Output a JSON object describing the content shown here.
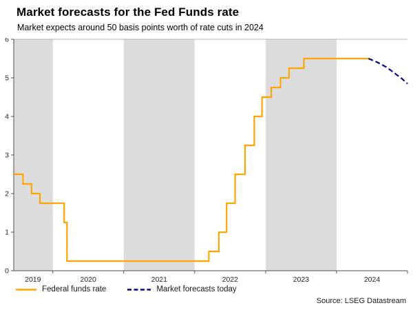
{
  "header": {
    "title": "Market forecasts for the Fed Funds rate",
    "subtitle": "Market expects around 50 basis points worth of rate cuts in 2024"
  },
  "chart_data": {
    "type": "line",
    "title": "Market forecasts for the Fed Funds rate",
    "xlabel": "",
    "ylabel": "",
    "x_domain": [
      2019.45,
      2025.0
    ],
    "y_domain": [
      0,
      6
    ],
    "y_ticks": [
      0,
      1,
      2,
      3,
      4,
      5,
      6
    ],
    "x_tick_boundaries": [
      2020,
      2021,
      2022,
      2023,
      2024,
      2025
    ],
    "x_labels": [
      {
        "text": "2019",
        "pos": 2019.72
      },
      {
        "text": "2020",
        "pos": 2020.5
      },
      {
        "text": "2021",
        "pos": 2021.5
      },
      {
        "text": "2022",
        "pos": 2022.5
      },
      {
        "text": "2023",
        "pos": 2023.5
      },
      {
        "text": "2024",
        "pos": 2024.5
      }
    ],
    "shaded_bands": [
      [
        2019.45,
        2020.0
      ],
      [
        2021.0,
        2022.0
      ],
      [
        2023.0,
        2024.0
      ]
    ],
    "band_color": "#DCDCDC",
    "grid": "off",
    "legend_position": "bottom-left",
    "series": [
      {
        "name": "Federal funds rate",
        "color": "#FFA500",
        "style": "solid",
        "points": [
          [
            2019.45,
            2.5
          ],
          [
            2019.58,
            2.5
          ],
          [
            2019.58,
            2.25
          ],
          [
            2019.7,
            2.25
          ],
          [
            2019.7,
            2.0
          ],
          [
            2019.82,
            2.0
          ],
          [
            2019.82,
            1.75
          ],
          [
            2020.16,
            1.75
          ],
          [
            2020.16,
            1.25
          ],
          [
            2020.2,
            1.25
          ],
          [
            2020.2,
            0.25
          ],
          [
            2022.2,
            0.25
          ],
          [
            2022.2,
            0.5
          ],
          [
            2022.34,
            0.5
          ],
          [
            2022.34,
            1.0
          ],
          [
            2022.45,
            1.0
          ],
          [
            2022.45,
            1.75
          ],
          [
            2022.57,
            1.75
          ],
          [
            2022.57,
            2.5
          ],
          [
            2022.71,
            2.5
          ],
          [
            2022.71,
            3.25
          ],
          [
            2022.84,
            3.25
          ],
          [
            2022.84,
            4.0
          ],
          [
            2022.95,
            4.0
          ],
          [
            2022.95,
            4.5
          ],
          [
            2023.08,
            4.5
          ],
          [
            2023.08,
            4.75
          ],
          [
            2023.21,
            4.75
          ],
          [
            2023.21,
            5.0
          ],
          [
            2023.33,
            5.0
          ],
          [
            2023.33,
            5.25
          ],
          [
            2023.54,
            5.25
          ],
          [
            2023.54,
            5.5
          ],
          [
            2024.45,
            5.5
          ]
        ]
      },
      {
        "name": "Market forecasts today",
        "color": "#00008B",
        "style": "dashed",
        "points": [
          [
            2024.45,
            5.5
          ],
          [
            2024.58,
            5.4
          ],
          [
            2024.7,
            5.28
          ],
          [
            2024.82,
            5.12
          ],
          [
            2024.92,
            4.98
          ],
          [
            2025.0,
            4.85
          ]
        ]
      }
    ]
  },
  "legend": {
    "items": [
      {
        "label": "Federal funds rate"
      },
      {
        "label": "Market forecasts today"
      }
    ]
  },
  "footer": {
    "source": "Source: LSEG Datastream"
  }
}
